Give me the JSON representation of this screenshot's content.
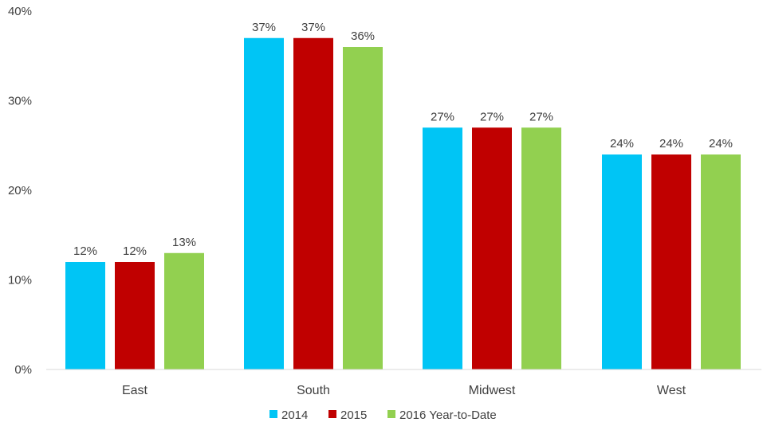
{
  "chart_data": {
    "type": "bar",
    "title": "",
    "xlabel": "",
    "ylabel": "",
    "categories": [
      "East",
      "South",
      "Midwest",
      "West"
    ],
    "series": [
      {
        "name": "2014",
        "color": "#00c5f5",
        "values": [
          12,
          37,
          27,
          24
        ]
      },
      {
        "name": "2015",
        "color": "#c00000",
        "values": [
          12,
          37,
          27,
          24
        ]
      },
      {
        "name": "2016 Year-to-Date",
        "color": "#92d050",
        "values": [
          13,
          36,
          27,
          24
        ]
      }
    ],
    "ylim": [
      0,
      40
    ],
    "yticks": [
      0,
      10,
      20,
      30,
      40
    ],
    "ytick_labels": [
      "0%",
      "10%",
      "20%",
      "30%",
      "40%"
    ],
    "data_labels": [
      [
        "12%",
        "37%",
        "27%",
        "24%"
      ],
      [
        "12%",
        "37%",
        "27%",
        "24%"
      ],
      [
        "13%",
        "36%",
        "27%",
        "24%"
      ]
    ],
    "grid": false,
    "legend_position": "bottom"
  }
}
